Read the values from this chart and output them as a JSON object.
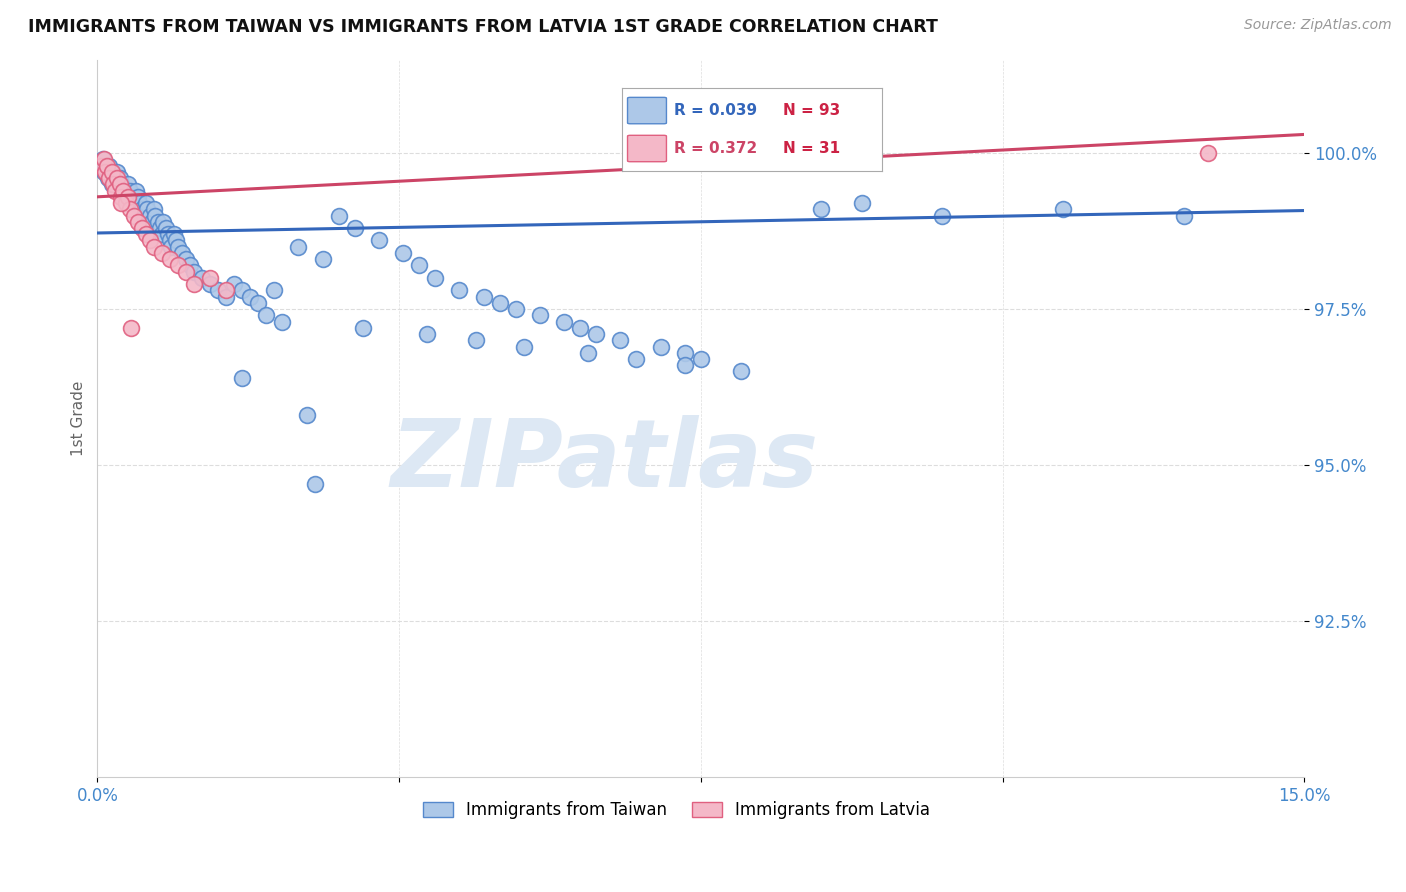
{
  "title": "IMMIGRANTS FROM TAIWAN VS IMMIGRANTS FROM LATVIA 1ST GRADE CORRELATION CHART",
  "source": "Source: ZipAtlas.com",
  "ylabel": "1st Grade",
  "legend_taiwan": "Immigrants from Taiwan",
  "legend_latvia": "Immigrants from Latvia",
  "taiwan_R": 0.039,
  "taiwan_N": 93,
  "latvia_R": 0.372,
  "latvia_N": 31,
  "taiwan_color": "#adc8e8",
  "taiwan_edge_color": "#5588cc",
  "taiwan_line_color": "#3366bb",
  "latvia_color": "#f4b8c8",
  "latvia_edge_color": "#e06080",
  "latvia_line_color": "#cc4466",
  "tw_line_x0": 0.0,
  "tw_line_x1": 15.0,
  "tw_line_y0": 98.72,
  "tw_line_y1": 99.08,
  "lv_line_x0": 0.0,
  "lv_line_x1": 15.0,
  "lv_line_y0": 99.3,
  "lv_line_y1": 100.3,
  "xlim": [
    0.0,
    15.0
  ],
  "ylim": [
    90.0,
    101.5
  ],
  "yticks": [
    92.5,
    95.0,
    97.5,
    100.0
  ],
  "yticklabels": [
    "92.5%",
    "95.0%",
    "97.5%",
    "100.0%"
  ],
  "xtick_positions": [
    0.0,
    3.75,
    7.5,
    11.25,
    15.0
  ],
  "xticklabels": [
    "0.0%",
    "",
    "",
    "",
    "15.0%"
  ],
  "watermark_text": "ZIPatlas",
  "watermark_color": "#dde8f4",
  "background_color": "#ffffff",
  "grid_color": "#dddddd",
  "tick_color": "#4488cc",
  "taiwan_x": [
    0.05,
    0.07,
    0.08,
    0.1,
    0.12,
    0.13,
    0.15,
    0.17,
    0.18,
    0.2,
    0.22,
    0.25,
    0.28,
    0.3,
    0.32,
    0.35,
    0.38,
    0.4,
    0.42,
    0.45,
    0.48,
    0.5,
    0.52,
    0.55,
    0.58,
    0.6,
    0.62,
    0.65,
    0.68,
    0.7,
    0.72,
    0.75,
    0.78,
    0.8,
    0.82,
    0.85,
    0.88,
    0.9,
    0.92,
    0.95,
    0.98,
    1.0,
    1.05,
    1.1,
    1.15,
    1.2,
    1.3,
    1.4,
    1.5,
    1.6,
    1.7,
    1.8,
    1.9,
    2.0,
    2.2,
    2.5,
    2.8,
    3.0,
    3.2,
    3.5,
    3.8,
    4.0,
    4.2,
    4.5,
    4.8,
    5.0,
    5.2,
    5.5,
    5.8,
    6.0,
    6.2,
    6.5,
    7.0,
    7.3,
    7.5,
    8.0,
    9.0,
    9.5,
    10.5,
    12.0,
    13.5,
    2.1,
    2.3,
    3.3,
    4.1,
    4.7,
    5.3,
    6.1,
    6.7,
    7.3,
    1.8,
    2.6,
    2.7
  ],
  "taiwan_y": [
    99.8,
    99.9,
    99.7,
    99.8,
    99.7,
    99.6,
    99.8,
    99.7,
    99.5,
    99.6,
    99.5,
    99.7,
    99.6,
    99.5,
    99.4,
    99.3,
    99.5,
    99.4,
    99.3,
    99.2,
    99.4,
    99.3,
    99.2,
    99.1,
    99.0,
    99.2,
    99.1,
    99.0,
    98.9,
    99.1,
    99.0,
    98.9,
    98.8,
    98.7,
    98.9,
    98.8,
    98.7,
    98.6,
    98.5,
    98.7,
    98.6,
    98.5,
    98.4,
    98.3,
    98.2,
    98.1,
    98.0,
    97.9,
    97.8,
    97.7,
    97.9,
    97.8,
    97.7,
    97.6,
    97.8,
    98.5,
    98.3,
    99.0,
    98.8,
    98.6,
    98.4,
    98.2,
    98.0,
    97.8,
    97.7,
    97.6,
    97.5,
    97.4,
    97.3,
    97.2,
    97.1,
    97.0,
    96.9,
    96.8,
    96.7,
    96.5,
    99.1,
    99.2,
    99.0,
    99.1,
    99.0,
    97.4,
    97.3,
    97.2,
    97.1,
    97.0,
    96.9,
    96.8,
    96.7,
    96.6,
    96.4,
    95.8,
    94.7
  ],
  "latvia_x": [
    0.05,
    0.08,
    0.1,
    0.12,
    0.15,
    0.18,
    0.2,
    0.22,
    0.25,
    0.28,
    0.3,
    0.32,
    0.35,
    0.38,
    0.4,
    0.45,
    0.5,
    0.55,
    0.6,
    0.65,
    0.7,
    0.8,
    0.9,
    1.0,
    1.1,
    1.2,
    1.4,
    1.6,
    13.8,
    0.3,
    0.42
  ],
  "latvia_y": [
    99.8,
    99.9,
    99.7,
    99.8,
    99.6,
    99.7,
    99.5,
    99.4,
    99.6,
    99.5,
    99.3,
    99.4,
    99.2,
    99.3,
    99.1,
    99.0,
    98.9,
    98.8,
    98.7,
    98.6,
    98.5,
    98.4,
    98.3,
    98.2,
    98.1,
    97.9,
    98.0,
    97.8,
    100.0,
    99.2,
    97.2
  ]
}
